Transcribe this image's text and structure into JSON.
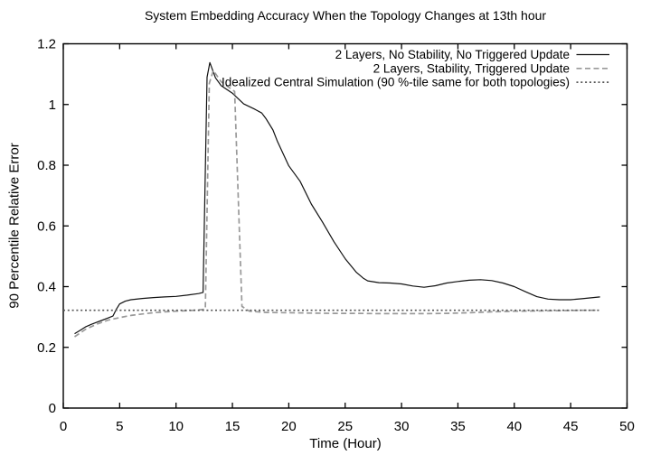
{
  "chart_data": {
    "type": "line",
    "title": "System Embedding Accuracy When the Topology Changes at 13th hour",
    "xlabel": "Time (Hour)",
    "ylabel": "90 Percentile Relative Error",
    "xlim": [
      0,
      50
    ],
    "ylim": [
      0,
      1.2
    ],
    "grid": false,
    "background_color": "#ffffff",
    "axis_color": "#000000",
    "legend": {
      "position": "top-right-inside",
      "text_align": "right"
    },
    "xticks": [
      {
        "v": 0,
        "label": "0"
      },
      {
        "v": 5,
        "label": "5"
      },
      {
        "v": 10,
        "label": "10"
      },
      {
        "v": 15,
        "label": "15"
      },
      {
        "v": 20,
        "label": "20"
      },
      {
        "v": 25,
        "label": "25"
      },
      {
        "v": 30,
        "label": "30"
      },
      {
        "v": 35,
        "label": "35"
      },
      {
        "v": 40,
        "label": "40"
      },
      {
        "v": 45,
        "label": "45"
      },
      {
        "v": 50,
        "label": "50"
      }
    ],
    "yticks": [
      {
        "v": 0,
        "label": "0"
      },
      {
        "v": 0.2,
        "label": "0.2"
      },
      {
        "v": 0.4,
        "label": "0.4"
      },
      {
        "v": 0.6,
        "label": "0.6"
      },
      {
        "v": 0.8,
        "label": "0.8"
      },
      {
        "v": 1,
        "label": "1"
      },
      {
        "v": 1.2,
        "label": "1.2"
      }
    ],
    "series": [
      {
        "name": "2 Layers, No Stability, No Triggered Update",
        "style": "solid",
        "color": "#111111",
        "points": [
          [
            1,
            0.245
          ],
          [
            1.5,
            0.256
          ],
          [
            2,
            0.268
          ],
          [
            2.5,
            0.276
          ],
          [
            3,
            0.283
          ],
          [
            3.5,
            0.29
          ],
          [
            4,
            0.297
          ],
          [
            4.4,
            0.303
          ],
          [
            4.7,
            0.325
          ],
          [
            5,
            0.343
          ],
          [
            5.5,
            0.352
          ],
          [
            6,
            0.357
          ],
          [
            7,
            0.361
          ],
          [
            8,
            0.364
          ],
          [
            9,
            0.366
          ],
          [
            10,
            0.368
          ],
          [
            11,
            0.372
          ],
          [
            12,
            0.377
          ],
          [
            12.4,
            0.381
          ],
          [
            12.75,
            1.09
          ],
          [
            13,
            1.138
          ],
          [
            13.5,
            1.088
          ],
          [
            14,
            1.062
          ],
          [
            15,
            1.037
          ],
          [
            16,
            1.002
          ],
          [
            17,
            0.984
          ],
          [
            17.6,
            0.972
          ],
          [
            18,
            0.952
          ],
          [
            18.6,
            0.916
          ],
          [
            19,
            0.878
          ],
          [
            20,
            0.798
          ],
          [
            21,
            0.747
          ],
          [
            22,
            0.672
          ],
          [
            23,
            0.612
          ],
          [
            24,
            0.548
          ],
          [
            25,
            0.492
          ],
          [
            26,
            0.447
          ],
          [
            26.6,
            0.428
          ],
          [
            27,
            0.419
          ],
          [
            28,
            0.413
          ],
          [
            29,
            0.412
          ],
          [
            30,
            0.409
          ],
          [
            31,
            0.402
          ],
          [
            32,
            0.398
          ],
          [
            33,
            0.403
          ],
          [
            34,
            0.412
          ],
          [
            35,
            0.417
          ],
          [
            36,
            0.421
          ],
          [
            37,
            0.423
          ],
          [
            38,
            0.42
          ],
          [
            39,
            0.412
          ],
          [
            40,
            0.4
          ],
          [
            41,
            0.383
          ],
          [
            42,
            0.367
          ],
          [
            43,
            0.359
          ],
          [
            44,
            0.357
          ],
          [
            45,
            0.357
          ],
          [
            46,
            0.36
          ],
          [
            47,
            0.364
          ],
          [
            47.6,
            0.366
          ]
        ]
      },
      {
        "name": "2 Layers, Stability, Triggered Update",
        "style": "dashed",
        "color": "#999999",
        "points": [
          [
            1,
            0.235
          ],
          [
            2,
            0.26
          ],
          [
            3,
            0.277
          ],
          [
            4,
            0.29
          ],
          [
            5,
            0.298
          ],
          [
            6,
            0.305
          ],
          [
            7,
            0.31
          ],
          [
            8,
            0.314
          ],
          [
            9,
            0.317
          ],
          [
            10,
            0.319
          ],
          [
            11,
            0.321
          ],
          [
            12,
            0.323
          ],
          [
            12.6,
            0.326
          ],
          [
            12.95,
            1.07
          ],
          [
            13.3,
            1.112
          ],
          [
            14,
            1.075
          ],
          [
            15.2,
            1.043
          ],
          [
            15.85,
            0.335
          ],
          [
            16.5,
            0.319
          ],
          [
            18,
            0.315
          ],
          [
            20,
            0.314
          ],
          [
            22,
            0.313
          ],
          [
            24,
            0.312
          ],
          [
            26,
            0.312
          ],
          [
            28,
            0.311
          ],
          [
            30,
            0.311
          ],
          [
            32,
            0.311
          ],
          [
            34,
            0.312
          ],
          [
            36,
            0.314
          ],
          [
            38,
            0.317
          ],
          [
            40,
            0.319
          ],
          [
            42,
            0.32
          ],
          [
            44,
            0.321
          ],
          [
            46,
            0.322
          ],
          [
            47.5,
            0.322
          ]
        ]
      },
      {
        "name": "Idealized Central Simulation (90 %-tile same for both topologies)",
        "style": "dotted",
        "color": "#555555",
        "points": [
          [
            0,
            0.322
          ],
          [
            47.7,
            0.322
          ]
        ]
      }
    ]
  }
}
